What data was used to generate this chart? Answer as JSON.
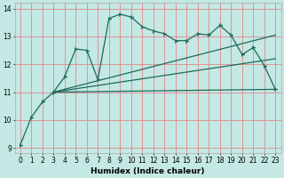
{
  "xlabel": "Humidex (Indice chaleur)",
  "ylabel": "",
  "background_color": "#c4e8e4",
  "grid_color": "#e08888",
  "line_color": "#1a6b5a",
  "xlim": [
    -0.5,
    23.5
  ],
  "ylim": [
    8.8,
    14.2
  ],
  "xticks": [
    0,
    1,
    2,
    3,
    4,
    5,
    6,
    7,
    8,
    9,
    10,
    11,
    12,
    13,
    14,
    15,
    16,
    17,
    18,
    19,
    20,
    21,
    22,
    23
  ],
  "yticks": [
    9,
    10,
    11,
    12,
    13,
    14
  ],
  "series1_x": [
    0,
    1,
    2,
    3,
    4,
    5,
    6,
    7,
    8,
    9,
    10,
    11,
    12,
    13,
    14,
    15,
    16,
    17,
    18,
    19,
    20,
    21,
    22,
    23
  ],
  "series1_y": [
    9.1,
    10.1,
    10.65,
    11.0,
    11.55,
    12.55,
    12.5,
    11.45,
    13.65,
    13.8,
    13.7,
    13.35,
    13.2,
    13.1,
    12.85,
    12.85,
    13.1,
    13.05,
    13.4,
    13.05,
    12.35,
    12.6,
    11.95,
    11.1
  ],
  "line1_x": [
    3,
    23
  ],
  "line1_y": [
    11.0,
    11.1
  ],
  "line2_x": [
    3,
    23
  ],
  "line2_y": [
    11.0,
    12.2
  ],
  "line3_x": [
    3,
    23
  ],
  "line3_y": [
    11.0,
    13.05
  ]
}
